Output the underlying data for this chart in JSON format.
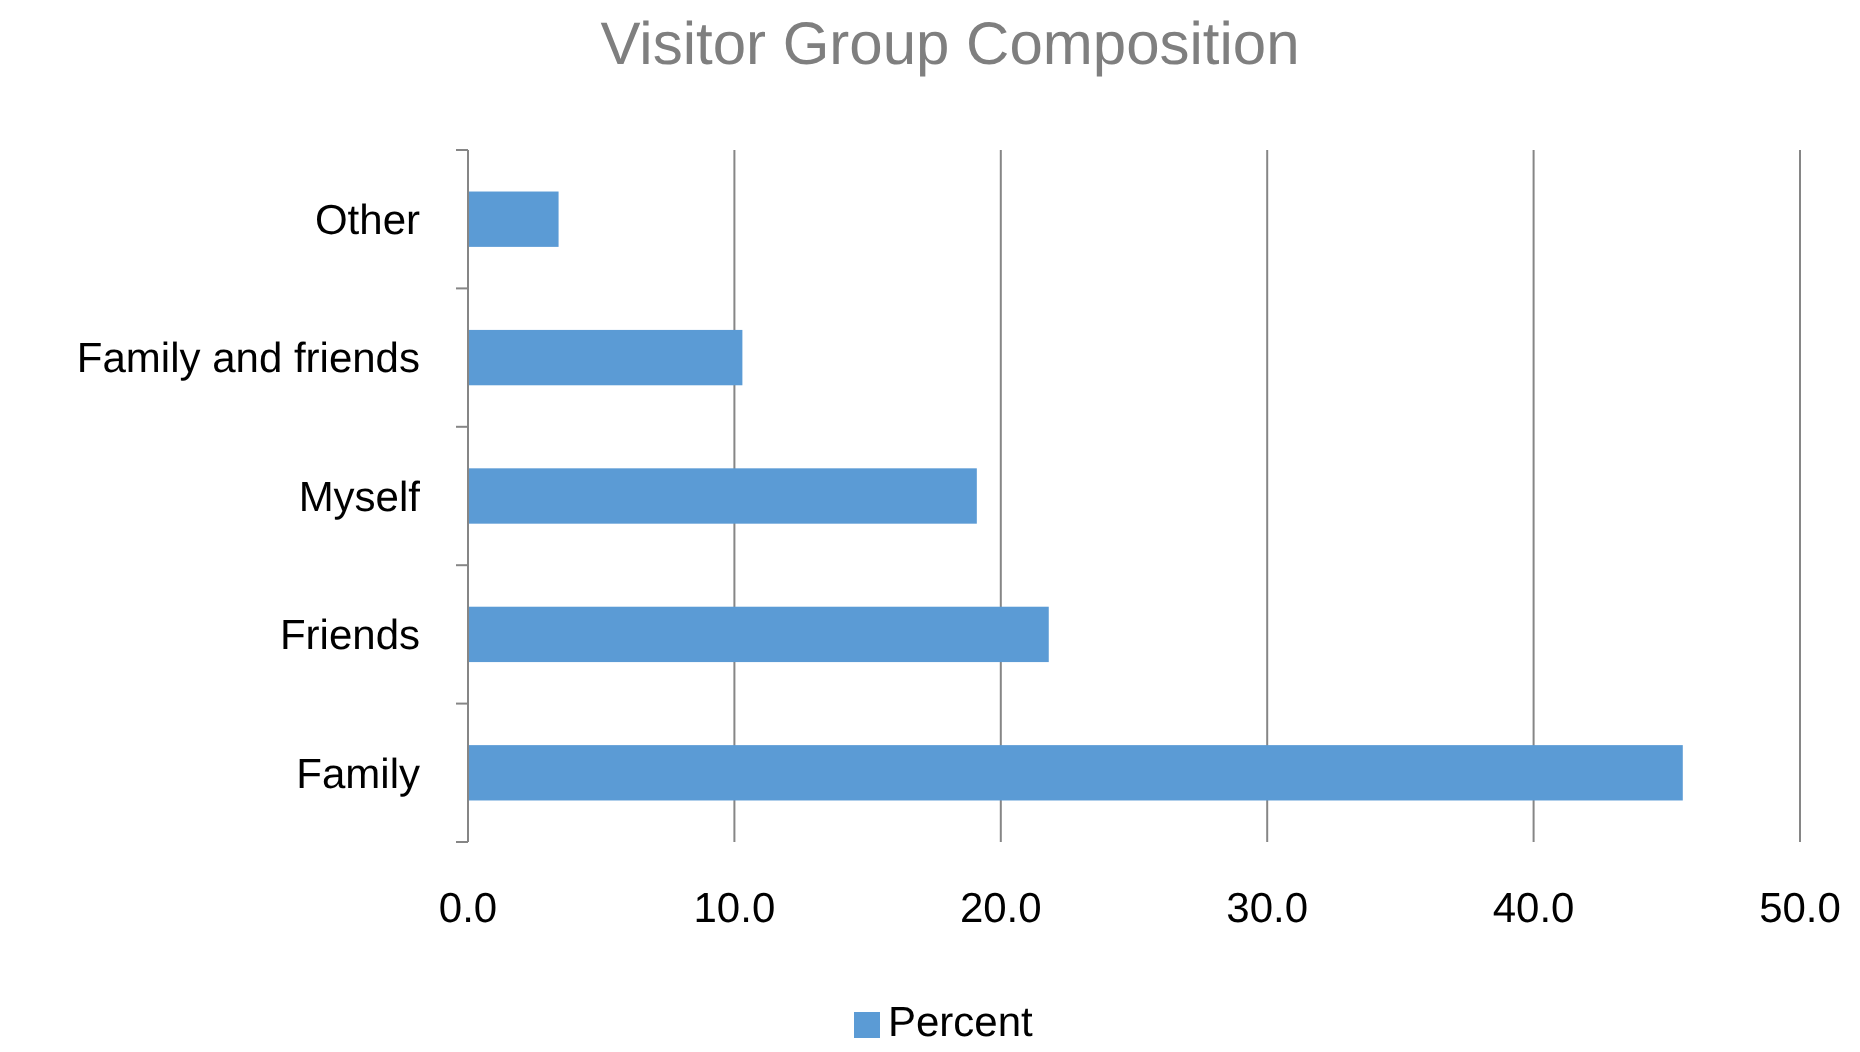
{
  "chart_data": {
    "type": "bar",
    "orientation": "horizontal",
    "title": "Visitor Group Composition",
    "categories": [
      "Other",
      "Family and friends",
      "Myself",
      "Friends",
      "Family"
    ],
    "series": [
      {
        "name": "Percent",
        "color": "#5b9bd5",
        "values": [
          3.4,
          10.3,
          19.1,
          21.8,
          45.6
        ]
      }
    ],
    "xlim": [
      0,
      50
    ],
    "xticks": [
      {
        "value": 0,
        "label": "0.0"
      },
      {
        "value": 10,
        "label": "10.0"
      },
      {
        "value": 20,
        "label": "20.0"
      },
      {
        "value": 30,
        "label": "30.0"
      },
      {
        "value": 40,
        "label": "40.0"
      },
      {
        "value": 50,
        "label": "50.0"
      }
    ],
    "grid": "x",
    "legend": "bottom"
  }
}
